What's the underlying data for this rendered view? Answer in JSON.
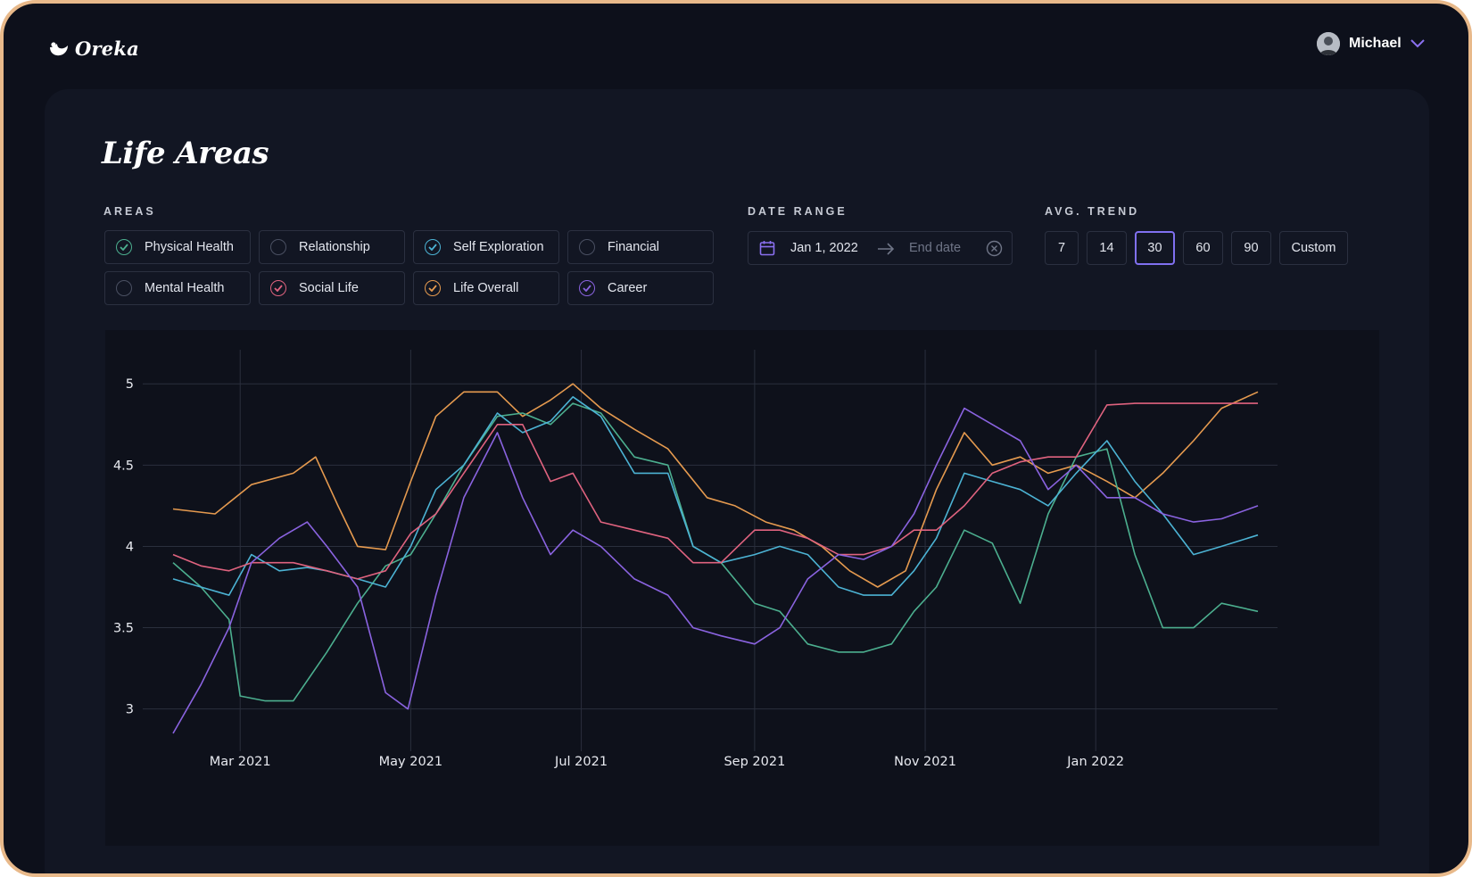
{
  "app": {
    "name": "Oreka"
  },
  "user": {
    "name": "Michael"
  },
  "page": {
    "title": "Life Areas"
  },
  "filters": {
    "areas_label": "AREAS",
    "areas": [
      {
        "label": "Physical Health",
        "checked": true,
        "color": "#4caf8f"
      },
      {
        "label": "Relationship",
        "checked": false,
        "color": "#4a5062"
      },
      {
        "label": "Self Exploration",
        "checked": true,
        "color": "#4cb3d4"
      },
      {
        "label": "Financial",
        "checked": false,
        "color": "#4a5062"
      },
      {
        "label": "Mental Health",
        "checked": false,
        "color": "#4a5062"
      },
      {
        "label": "Social Life",
        "checked": true,
        "color": "#e0637f"
      },
      {
        "label": "Life Overall",
        "checked": true,
        "color": "#e59a4f"
      },
      {
        "label": "Career",
        "checked": true,
        "color": "#8a63e0"
      }
    ],
    "date_range_label": "DATE RANGE",
    "date_start": "Jan 1, 2022",
    "date_end_placeholder": "End date",
    "trend_label": "AVG. TREND",
    "trend_options": [
      "7",
      "14",
      "30",
      "60",
      "90",
      "Custom"
    ],
    "trend_selected": "30"
  },
  "chart_data": {
    "type": "line",
    "x_ticks": [
      "Mar 2021",
      "May 2021",
      "Jul 2021",
      "Sep 2021",
      "Nov 2021",
      "Jan 2022"
    ],
    "y_ticks": [
      "3",
      "3.5",
      "4",
      "4.5",
      "5"
    ],
    "ylim": [
      2.85,
      5.1
    ],
    "xlim": [
      "2021-02-05",
      "2022-02-28"
    ],
    "grid": true,
    "series": [
      {
        "color": "#e59a4f",
        "points": [
          [
            "2021-02-05",
            4.23
          ],
          [
            "2021-02-20",
            4.2
          ],
          [
            "2021-03-05",
            4.38
          ],
          [
            "2021-03-20",
            4.45
          ],
          [
            "2021-03-28",
            4.55
          ],
          [
            "2021-04-05",
            4.25
          ],
          [
            "2021-04-12",
            4.0
          ],
          [
            "2021-04-22",
            3.98
          ],
          [
            "2021-05-01",
            4.4
          ],
          [
            "2021-05-10",
            4.8
          ],
          [
            "2021-05-20",
            4.95
          ],
          [
            "2021-06-01",
            4.95
          ],
          [
            "2021-06-10",
            4.8
          ],
          [
            "2021-06-20",
            4.9
          ],
          [
            "2021-06-28",
            5.0
          ],
          [
            "2021-07-08",
            4.85
          ],
          [
            "2021-07-20",
            4.72
          ],
          [
            "2021-08-01",
            4.6
          ],
          [
            "2021-08-15",
            4.3
          ],
          [
            "2021-08-25",
            4.25
          ],
          [
            "2021-09-05",
            4.15
          ],
          [
            "2021-09-15",
            4.1
          ],
          [
            "2021-09-25",
            4.0
          ],
          [
            "2021-10-05",
            3.85
          ],
          [
            "2021-10-15",
            3.75
          ],
          [
            "2021-10-25",
            3.85
          ],
          [
            "2021-11-05",
            4.35
          ],
          [
            "2021-11-15",
            4.7
          ],
          [
            "2021-11-25",
            4.5
          ],
          [
            "2021-12-05",
            4.55
          ],
          [
            "2021-12-15",
            4.45
          ],
          [
            "2021-12-25",
            4.5
          ],
          [
            "2022-01-05",
            4.4
          ],
          [
            "2022-01-15",
            4.3
          ],
          [
            "2022-01-25",
            4.45
          ],
          [
            "2022-02-05",
            4.65
          ],
          [
            "2022-02-15",
            4.85
          ],
          [
            "2022-02-28",
            4.95
          ]
        ]
      },
      {
        "color": "#4caf8f",
        "points": [
          [
            "2021-02-05",
            3.9
          ],
          [
            "2021-02-15",
            3.75
          ],
          [
            "2021-02-25",
            3.55
          ],
          [
            "2021-03-01",
            3.08
          ],
          [
            "2021-03-10",
            3.05
          ],
          [
            "2021-03-20",
            3.05
          ],
          [
            "2021-04-01",
            3.35
          ],
          [
            "2021-04-12",
            3.65
          ],
          [
            "2021-04-22",
            3.88
          ],
          [
            "2021-05-01",
            3.95
          ],
          [
            "2021-05-10",
            4.2
          ],
          [
            "2021-05-20",
            4.5
          ],
          [
            "2021-06-01",
            4.8
          ],
          [
            "2021-06-10",
            4.82
          ],
          [
            "2021-06-20",
            4.75
          ],
          [
            "2021-06-28",
            4.88
          ],
          [
            "2021-07-08",
            4.82
          ],
          [
            "2021-07-20",
            4.55
          ],
          [
            "2021-08-01",
            4.5
          ],
          [
            "2021-08-10",
            4.0
          ],
          [
            "2021-08-20",
            3.9
          ],
          [
            "2021-09-01",
            3.65
          ],
          [
            "2021-09-10",
            3.6
          ],
          [
            "2021-09-20",
            3.4
          ],
          [
            "2021-10-01",
            3.35
          ],
          [
            "2021-10-10",
            3.35
          ],
          [
            "2021-10-20",
            3.4
          ],
          [
            "2021-10-28",
            3.6
          ],
          [
            "2021-11-05",
            3.75
          ],
          [
            "2021-11-15",
            4.1
          ],
          [
            "2021-11-25",
            4.02
          ],
          [
            "2021-12-05",
            3.65
          ],
          [
            "2021-12-15",
            4.2
          ],
          [
            "2021-12-25",
            4.55
          ],
          [
            "2022-01-05",
            4.6
          ],
          [
            "2022-01-15",
            3.95
          ],
          [
            "2022-01-25",
            3.5
          ],
          [
            "2022-02-05",
            3.5
          ],
          [
            "2022-02-15",
            3.65
          ],
          [
            "2022-02-28",
            3.6
          ]
        ]
      },
      {
        "color": "#4cb3d4",
        "points": [
          [
            "2021-02-05",
            3.8
          ],
          [
            "2021-02-15",
            3.75
          ],
          [
            "2021-02-25",
            3.7
          ],
          [
            "2021-03-05",
            3.95
          ],
          [
            "2021-03-15",
            3.85
          ],
          [
            "2021-03-25",
            3.87
          ],
          [
            "2021-04-01",
            3.85
          ],
          [
            "2021-04-12",
            3.8
          ],
          [
            "2021-04-22",
            3.75
          ],
          [
            "2021-05-01",
            4.0
          ],
          [
            "2021-05-10",
            4.35
          ],
          [
            "2021-05-20",
            4.5
          ],
          [
            "2021-06-01",
            4.82
          ],
          [
            "2021-06-10",
            4.7
          ],
          [
            "2021-06-20",
            4.77
          ],
          [
            "2021-06-28",
            4.92
          ],
          [
            "2021-07-08",
            4.8
          ],
          [
            "2021-07-20",
            4.45
          ],
          [
            "2021-08-01",
            4.45
          ],
          [
            "2021-08-10",
            4.0
          ],
          [
            "2021-08-20",
            3.9
          ],
          [
            "2021-09-01",
            3.95
          ],
          [
            "2021-09-10",
            4.0
          ],
          [
            "2021-09-20",
            3.95
          ],
          [
            "2021-10-01",
            3.75
          ],
          [
            "2021-10-10",
            3.7
          ],
          [
            "2021-10-20",
            3.7
          ],
          [
            "2021-10-28",
            3.85
          ],
          [
            "2021-11-05",
            4.05
          ],
          [
            "2021-11-15",
            4.45
          ],
          [
            "2021-11-25",
            4.4
          ],
          [
            "2021-12-05",
            4.35
          ],
          [
            "2021-12-15",
            4.25
          ],
          [
            "2021-12-25",
            4.45
          ],
          [
            "2022-01-05",
            4.65
          ],
          [
            "2022-01-15",
            4.4
          ],
          [
            "2022-01-25",
            4.2
          ],
          [
            "2022-02-05",
            3.95
          ],
          [
            "2022-02-15",
            4.0
          ],
          [
            "2022-02-28",
            4.07
          ]
        ]
      },
      {
        "color": "#e0637f",
        "points": [
          [
            "2021-02-05",
            3.95
          ],
          [
            "2021-02-15",
            3.88
          ],
          [
            "2021-02-25",
            3.85
          ],
          [
            "2021-03-05",
            3.9
          ],
          [
            "2021-03-20",
            3.9
          ],
          [
            "2021-04-01",
            3.85
          ],
          [
            "2021-04-12",
            3.8
          ],
          [
            "2021-04-22",
            3.85
          ],
          [
            "2021-05-01",
            4.08
          ],
          [
            "2021-05-10",
            4.2
          ],
          [
            "2021-05-20",
            4.45
          ],
          [
            "2021-06-01",
            4.75
          ],
          [
            "2021-06-10",
            4.75
          ],
          [
            "2021-06-20",
            4.4
          ],
          [
            "2021-06-28",
            4.45
          ],
          [
            "2021-07-08",
            4.15
          ],
          [
            "2021-07-20",
            4.1
          ],
          [
            "2021-08-01",
            4.05
          ],
          [
            "2021-08-10",
            3.9
          ],
          [
            "2021-08-20",
            3.9
          ],
          [
            "2021-09-01",
            4.1
          ],
          [
            "2021-09-10",
            4.1
          ],
          [
            "2021-09-20",
            4.05
          ],
          [
            "2021-10-01",
            3.95
          ],
          [
            "2021-10-10",
            3.95
          ],
          [
            "2021-10-20",
            4.0
          ],
          [
            "2021-10-28",
            4.1
          ],
          [
            "2021-11-05",
            4.1
          ],
          [
            "2021-11-15",
            4.25
          ],
          [
            "2021-11-25",
            4.45
          ],
          [
            "2021-12-05",
            4.52
          ],
          [
            "2021-12-15",
            4.55
          ],
          [
            "2021-12-25",
            4.55
          ],
          [
            "2022-01-05",
            4.87
          ],
          [
            "2022-01-15",
            4.88
          ],
          [
            "2022-01-25",
            4.88
          ],
          [
            "2022-02-05",
            4.88
          ],
          [
            "2022-02-15",
            4.88
          ],
          [
            "2022-02-28",
            4.88
          ]
        ]
      },
      {
        "color": "#8a63e0",
        "points": [
          [
            "2021-02-05",
            2.85
          ],
          [
            "2021-02-15",
            3.15
          ],
          [
            "2021-02-25",
            3.5
          ],
          [
            "2021-03-05",
            3.9
          ],
          [
            "2021-03-15",
            4.05
          ],
          [
            "2021-03-25",
            4.15
          ],
          [
            "2021-04-01",
            4.0
          ],
          [
            "2021-04-12",
            3.75
          ],
          [
            "2021-04-22",
            3.1
          ],
          [
            "2021-04-30",
            3.0
          ],
          [
            "2021-05-10",
            3.7
          ],
          [
            "2021-05-20",
            4.3
          ],
          [
            "2021-06-01",
            4.7
          ],
          [
            "2021-06-10",
            4.3
          ],
          [
            "2021-06-20",
            3.95
          ],
          [
            "2021-06-28",
            4.1
          ],
          [
            "2021-07-08",
            4.0
          ],
          [
            "2021-07-20",
            3.8
          ],
          [
            "2021-08-01",
            3.7
          ],
          [
            "2021-08-10",
            3.5
          ],
          [
            "2021-08-20",
            3.45
          ],
          [
            "2021-09-01",
            3.4
          ],
          [
            "2021-09-10",
            3.5
          ],
          [
            "2021-09-20",
            3.8
          ],
          [
            "2021-10-01",
            3.95
          ],
          [
            "2021-10-10",
            3.92
          ],
          [
            "2021-10-20",
            4.0
          ],
          [
            "2021-10-28",
            4.2
          ],
          [
            "2021-11-05",
            4.5
          ],
          [
            "2021-11-15",
            4.85
          ],
          [
            "2021-11-25",
            4.75
          ],
          [
            "2021-12-05",
            4.65
          ],
          [
            "2021-12-15",
            4.35
          ],
          [
            "2021-12-25",
            4.5
          ],
          [
            "2022-01-05",
            4.3
          ],
          [
            "2022-01-15",
            4.3
          ],
          [
            "2022-01-25",
            4.2
          ],
          [
            "2022-02-05",
            4.15
          ],
          [
            "2022-02-15",
            4.17
          ],
          [
            "2022-02-28",
            4.25
          ]
        ]
      }
    ]
  }
}
